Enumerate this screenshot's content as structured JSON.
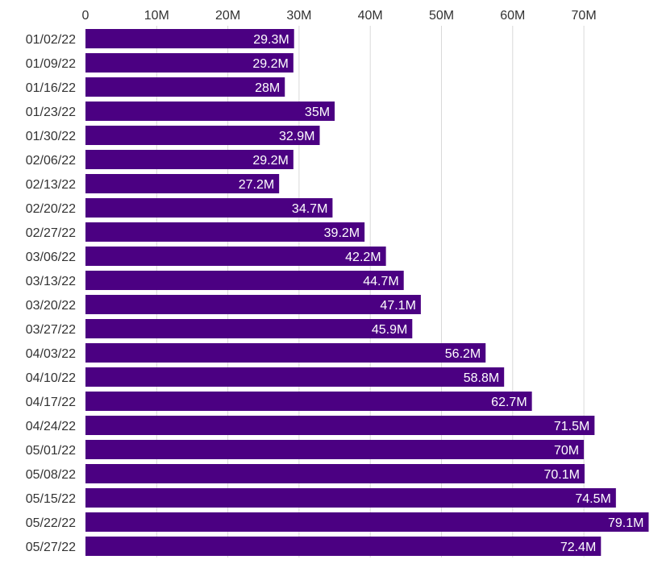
{
  "chart_data": {
    "type": "bar",
    "orientation": "horizontal",
    "categories": [
      "01/02/22",
      "01/09/22",
      "01/16/22",
      "01/23/22",
      "01/30/22",
      "02/06/22",
      "02/13/22",
      "02/20/22",
      "02/27/22",
      "03/06/22",
      "03/13/22",
      "03/20/22",
      "03/27/22",
      "04/03/22",
      "04/10/22",
      "04/17/22",
      "04/24/22",
      "05/01/22",
      "05/08/22",
      "05/15/22",
      "05/22/22",
      "05/27/22"
    ],
    "values": [
      29.3,
      29.2,
      28,
      35,
      32.9,
      29.2,
      27.2,
      34.7,
      39.2,
      42.2,
      44.7,
      47.1,
      45.9,
      56.2,
      58.8,
      62.7,
      71.5,
      70,
      70.1,
      74.5,
      79.1,
      72.4
    ],
    "data_labels": [
      "29.3M",
      "29.2M",
      "28M",
      "35M",
      "32.9M",
      "29.2M",
      "27.2M",
      "34.7M",
      "39.2M",
      "42.2M",
      "44.7M",
      "47.1M",
      "45.9M",
      "56.2M",
      "58.8M",
      "62.7M",
      "71.5M",
      "70M",
      "70.1M",
      "74.5M",
      "79.1M",
      "72.4M"
    ],
    "x_ticks": [
      0,
      10,
      20,
      30,
      40,
      50,
      60,
      70
    ],
    "x_tick_labels": [
      "0",
      "10M",
      "20M",
      "30M",
      "40M",
      "50M",
      "60M",
      "70M"
    ],
    "xlim": [
      0,
      79.1
    ],
    "axis_position": "top",
    "grid": true,
    "bar_color": "#4b0082",
    "title": "",
    "xlabel": "",
    "ylabel": ""
  }
}
